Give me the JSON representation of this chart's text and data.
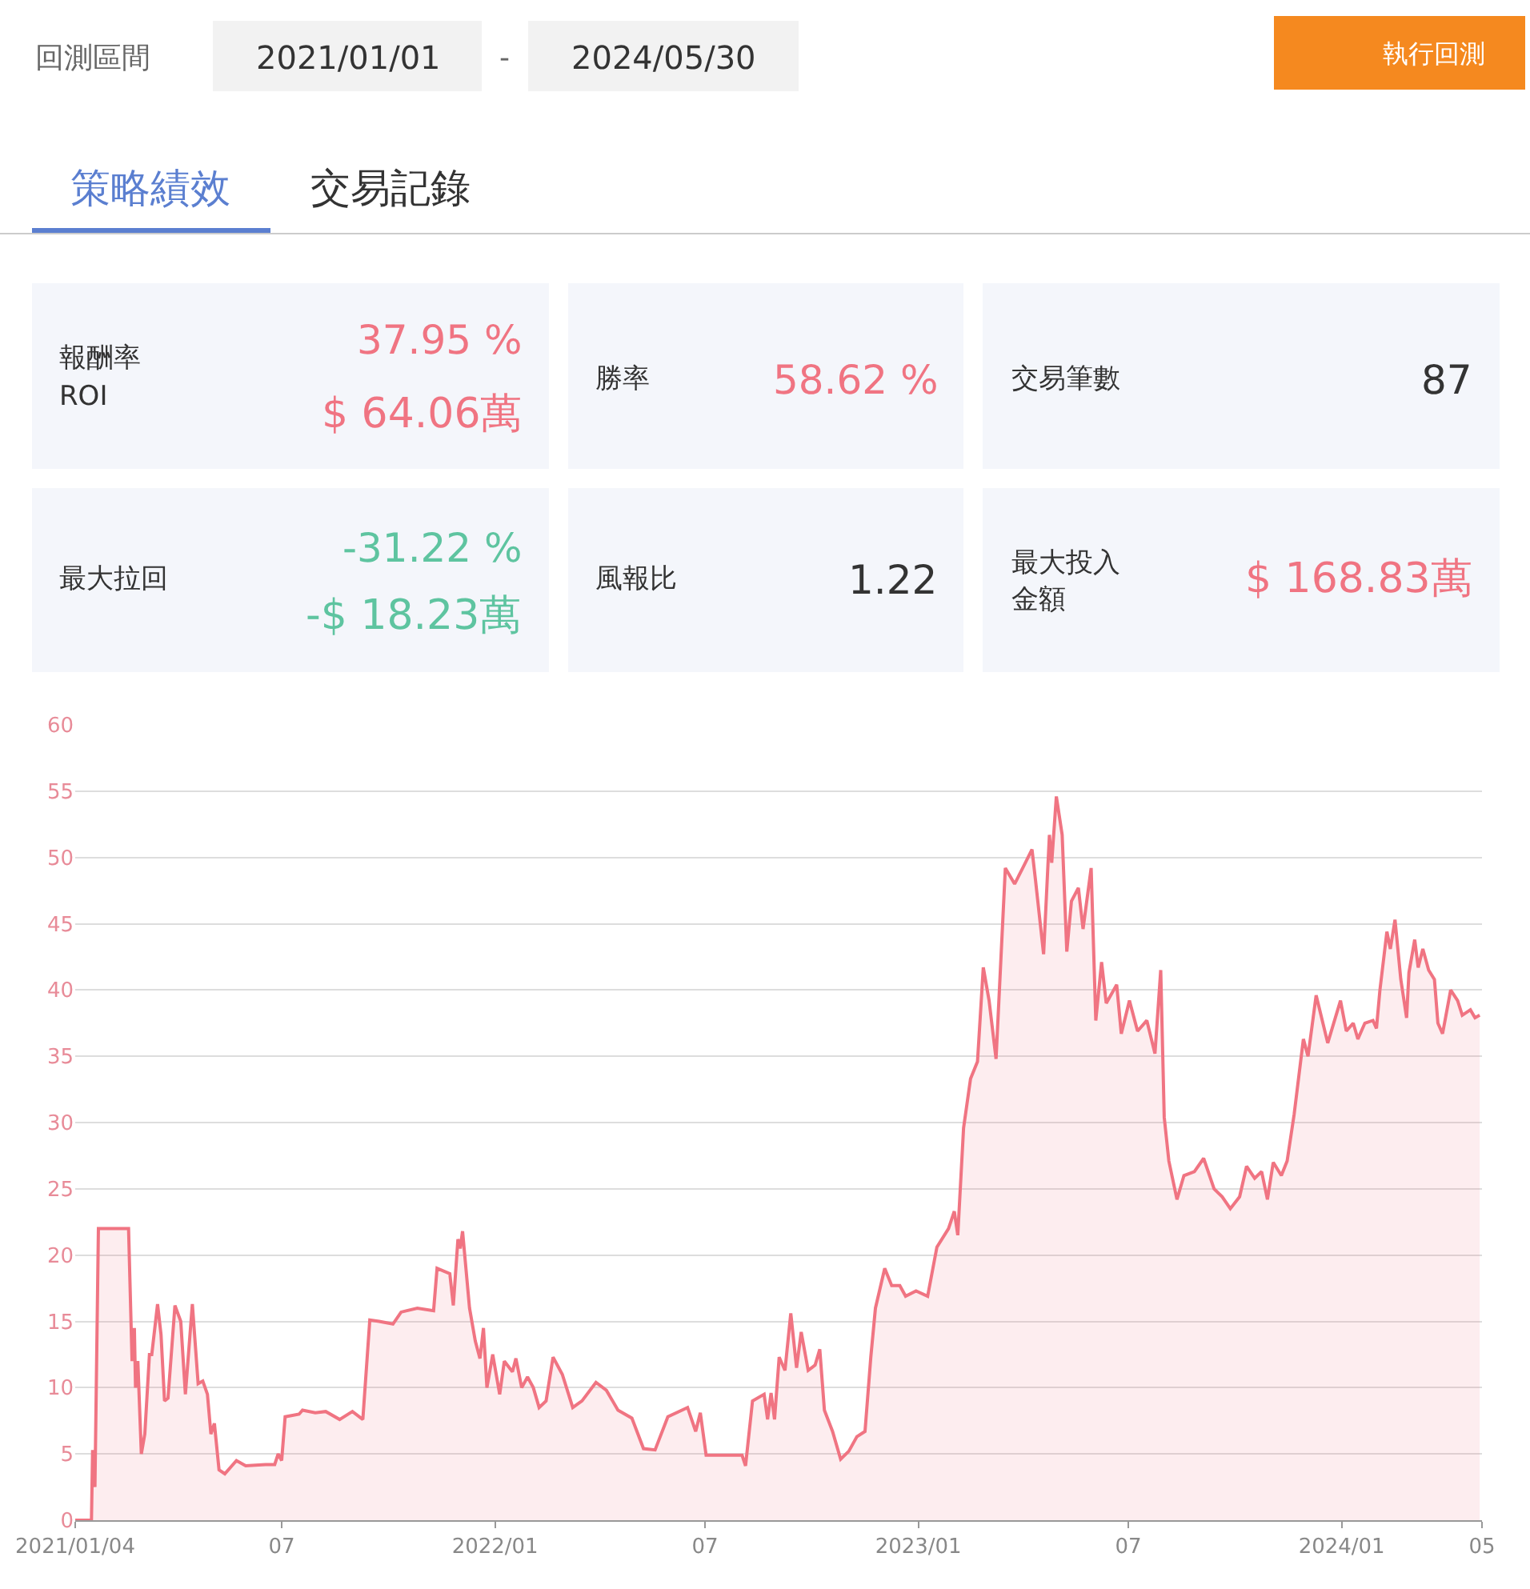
{
  "chart_data": [
    {
      "type": "other",
      "annotations": [
        "回測區間",
        "2021/01/01",
        "-",
        "2024/05/30",
        "執行回測",
        "策略績效",
        "交易記錄",
        "報酬率",
        "ROI",
        "37.95 %",
        "$ 64.06萬",
        "勝率",
        "58.62 %",
        "交易筆數",
        "87",
        "最大拉回",
        "-31.22 %",
        "-$ 18.23萬",
        "風報比",
        "1.22",
        "最大投入",
        "金額",
        "$ 168.83萬"
      ]
    },
    {
      "type": "area",
      "color": "#f07482",
      "grid": "y",
      "ylim": [
        0,
        60
      ],
      "yticks": [
        0,
        5,
        10,
        15,
        20,
        25,
        30,
        35,
        40,
        45,
        50,
        55,
        60
      ],
      "xlim": [
        "2021-01-04",
        "2024-05-01"
      ],
      "xticks": [
        {
          "value": "2021-01-04",
          "label": "2021/01/04"
        },
        {
          "value": "2021-07-01",
          "label": "07"
        },
        {
          "value": "2022-01-01",
          "label": "2022/01"
        },
        {
          "value": "2022-07-01",
          "label": "07"
        },
        {
          "value": "2023-01-01",
          "label": "2023/01"
        },
        {
          "value": "2023-07-01",
          "label": "07"
        },
        {
          "value": "2024-01-01",
          "label": "2024/01"
        },
        {
          "value": "2024-05-01",
          "label": "05"
        }
      ],
      "x": [
        "2021-01-04",
        "2021-01-18",
        "2021-01-19",
        "2021-01-21",
        "2021-01-24",
        "2021-02-19",
        "2021-02-22",
        "2021-02-24",
        "2021-02-25",
        "2021-02-27",
        "2021-03-02",
        "2021-03-05",
        "2021-03-09",
        "2021-03-11",
        "2021-03-16",
        "2021-03-19",
        "2021-03-22",
        "2021-03-25",
        "2021-03-31",
        "2021-04-05",
        "2021-04-09",
        "2021-04-15",
        "2021-04-20",
        "2021-04-24",
        "2021-04-28",
        "2021-05-01",
        "2021-05-04",
        "2021-05-08",
        "2021-05-13",
        "2021-05-23",
        "2021-05-31",
        "2021-06-17",
        "2021-06-25",
        "2021-06-28",
        "2021-07-01",
        "2021-07-04",
        "2021-07-16",
        "2021-07-19",
        "2021-07-30",
        "2021-08-08",
        "2021-08-20",
        "2021-08-31",
        "2021-09-09",
        "2021-09-15",
        "2021-09-23",
        "2021-10-05",
        "2021-10-12",
        "2021-10-26",
        "2021-11-09",
        "2021-11-12",
        "2021-11-23",
        "2021-11-26",
        "2021-11-30",
        "2021-12-02",
        "2021-12-04",
        "2021-12-10",
        "2021-12-15",
        "2021-12-19",
        "2021-12-22",
        "2021-12-25",
        "2021-12-30",
        "2022-01-05",
        "2022-01-09",
        "2022-01-16",
        "2022-01-19",
        "2022-01-24",
        "2022-01-29",
        "2022-02-03",
        "2022-02-08",
        "2022-02-14",
        "2022-02-20",
        "2022-02-28",
        "2022-03-09",
        "2022-03-17",
        "2022-03-29",
        "2022-04-07",
        "2022-04-17",
        "2022-04-29",
        "2022-05-09",
        "2022-05-19",
        "2022-05-30",
        "2022-06-16",
        "2022-06-23",
        "2022-06-27",
        "2022-07-02",
        "2022-08-02",
        "2022-08-05",
        "2022-08-11",
        "2022-08-21",
        "2022-08-24",
        "2022-08-27",
        "2022-08-30",
        "2022-09-03",
        "2022-09-08",
        "2022-09-13",
        "2022-09-18",
        "2022-09-22",
        "2022-09-28",
        "2022-10-04",
        "2022-10-08",
        "2022-10-12",
        "2022-10-19",
        "2022-10-26",
        "2022-11-02",
        "2022-11-09",
        "2022-11-16",
        "2022-11-21",
        "2022-11-25",
        "2022-12-03",
        "2022-12-09",
        "2022-12-16",
        "2022-12-21",
        "2022-12-30",
        "2023-01-09",
        "2023-01-17",
        "2023-01-27",
        "2023-02-01",
        "2023-02-04",
        "2023-02-09",
        "2023-02-15",
        "2023-02-21",
        "2023-02-26",
        "2023-03-03",
        "2023-03-09",
        "2023-03-17",
        "2023-03-25",
        "2023-04-01",
        "2023-04-09",
        "2023-04-12",
        "2023-04-19",
        "2023-04-24",
        "2023-04-26",
        "2023-04-30",
        "2023-05-05",
        "2023-05-09",
        "2023-05-13",
        "2023-05-19",
        "2023-05-23",
        "2023-05-30",
        "2023-06-03",
        "2023-06-08",
        "2023-06-12",
        "2023-06-21",
        "2023-06-25",
        "2023-07-02",
        "2023-07-09",
        "2023-07-17",
        "2023-07-24",
        "2023-07-29",
        "2023-08-01",
        "2023-08-05",
        "2023-08-12",
        "2023-08-18",
        "2023-08-27",
        "2023-09-04",
        "2023-09-13",
        "2023-09-20",
        "2023-09-27",
        "2023-10-05",
        "2023-10-11",
        "2023-10-18",
        "2023-10-24",
        "2023-10-29",
        "2023-11-03",
        "2023-11-10",
        "2023-11-15",
        "2023-11-21",
        "2023-11-29",
        "2023-12-03",
        "2023-12-10",
        "2023-12-20",
        "2023-12-31",
        "2024-01-05",
        "2024-01-11",
        "2024-01-15",
        "2024-01-21",
        "2024-01-28",
        "2024-01-31",
        "2024-02-03",
        "2024-02-09",
        "2024-02-12",
        "2024-02-16",
        "2024-02-21",
        "2024-02-26",
        "2024-02-28",
        "2024-03-04",
        "2024-03-07",
        "2024-03-11",
        "2024-03-16",
        "2024-03-21",
        "2024-03-24",
        "2024-03-28",
        "2024-04-04",
        "2024-04-10",
        "2024-04-14",
        "2024-04-21",
        "2024-04-25",
        "2024-04-29"
      ],
      "values": [
        0,
        0,
        5.3,
        2.5,
        22,
        22,
        12,
        14.5,
        10,
        12,
        5,
        6.5,
        12.5,
        12.5,
        16.3,
        14,
        9,
        9.2,
        16.2,
        15,
        9.5,
        16.3,
        10.3,
        10.5,
        9.5,
        6.5,
        7.3,
        3.8,
        3.5,
        4.5,
        4.1,
        4.2,
        4.2,
        5.0,
        4.5,
        7.8,
        8.0,
        8.3,
        8.1,
        8.2,
        7.6,
        8.2,
        7.6,
        15.1,
        15,
        14.8,
        15.7,
        16.0,
        15.8,
        19,
        18.6,
        16.2,
        21.2,
        20.5,
        21.8,
        16,
        13.5,
        12.2,
        14.5,
        10,
        12.5,
        9.5,
        12,
        11.2,
        12.2,
        10,
        10.8,
        10,
        8.5,
        9,
        12.3,
        11,
        8.5,
        9,
        10.4,
        9.8,
        8.3,
        7.7,
        5.4,
        5.3,
        7.8,
        8.5,
        6.7,
        8.1,
        4.9,
        4.9,
        4.1,
        9,
        9.5,
        7.6,
        9.6,
        7.6,
        12.3,
        11.3,
        15.6,
        11.5,
        14.2,
        11.3,
        11.7,
        12.9,
        8.3,
        6.7,
        4.6,
        5.2,
        6.3,
        6.7,
        12.3,
        16,
        19,
        17.7,
        17.7,
        16.9,
        17.3,
        16.9,
        20.6,
        22,
        23.3,
        21.5,
        29.6,
        33.3,
        34.6,
        41.7,
        39.2,
        34.8,
        49.2,
        48,
        49.2,
        50.6,
        48.3,
        42.7,
        51.7,
        49.6,
        54.6,
        51.7,
        42.9,
        46.7,
        47.7,
        44.6,
        49.2,
        37.7,
        42.1,
        39,
        40.4,
        36.7,
        39.2,
        36.9,
        37.7,
        35.2,
        41.5,
        30.4,
        27.1,
        24.2,
        26,
        26.3,
        27.3,
        25,
        24.4,
        23.5,
        24.4,
        26.7,
        25.8,
        26.3,
        24.2,
        27,
        26,
        27.1,
        30.6,
        36.3,
        35,
        39.6,
        36,
        39.2,
        36.9,
        37.5,
        36.3,
        37.5,
        37.7,
        37.1,
        40,
        44.4,
        43.1,
        45.3,
        40.8,
        37.9,
        41.3,
        43.8,
        41.7,
        43.1,
        41.5,
        40.8,
        37.5,
        36.7,
        40,
        39.2,
        38.1,
        38.5,
        37.9,
        38.1
      ]
    }
  ]
}
